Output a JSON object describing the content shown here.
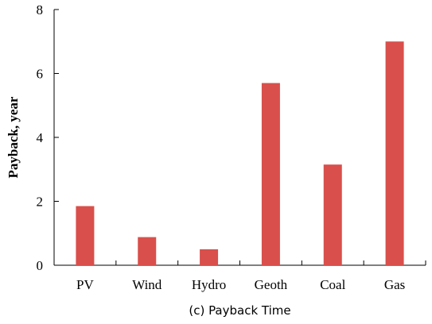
{
  "chart_data": {
    "type": "bar",
    "categories": [
      "PV",
      "Wind",
      "Hydro",
      "Geoth",
      "Coal",
      "Gas"
    ],
    "values": [
      1.85,
      0.88,
      0.5,
      5.7,
      3.15,
      7.0
    ],
    "title": "",
    "xlabel": "",
    "ylabel": "Payback, year",
    "ylim": [
      0,
      8
    ],
    "yticks": [
      "0",
      "2",
      "4",
      "6",
      "8"
    ],
    "bar_color": "#d94f4b",
    "grid": false
  },
  "caption": "(c) Payback Time"
}
